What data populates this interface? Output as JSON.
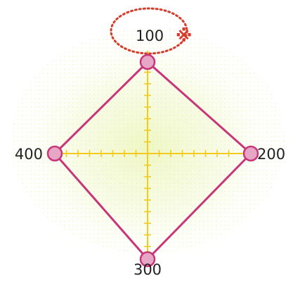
{
  "vertices": [
    {
      "id": "top",
      "label": "100"
    },
    {
      "id": "right",
      "label": "200"
    },
    {
      "id": "bottom",
      "label": "300"
    },
    {
      "id": "left",
      "label": "400"
    }
  ],
  "highlight_mark": "※",
  "colors": {
    "background_glow": "#eef6c0",
    "polygon_stroke": "#c8367a",
    "vertex_fill": "#e8a6c6",
    "vertex_stroke": "#c8367a",
    "axis": "#f2cb1e",
    "dotted_highlight": "#d63a2a",
    "mark": "#d63a2a",
    "text": "#222222"
  }
}
